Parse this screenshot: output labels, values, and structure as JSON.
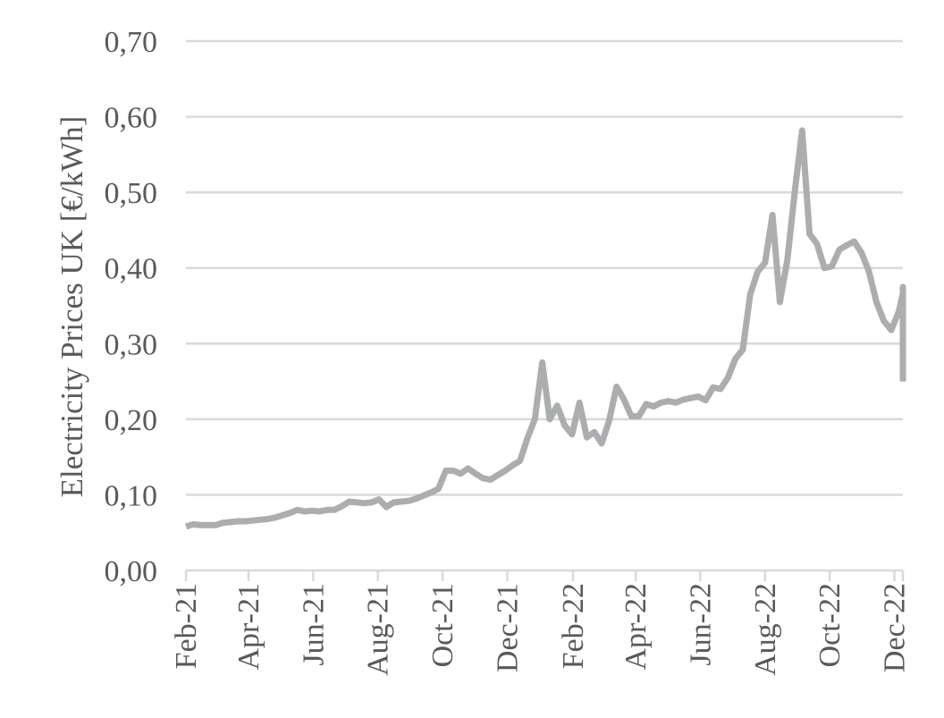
{
  "chart_data": {
    "type": "line",
    "title": "",
    "xlabel": "",
    "ylabel": "Electricity Prices UK [€/kWh]",
    "ylim": [
      0,
      0.7
    ],
    "grid": true,
    "legend": "none",
    "y_ticks": [
      {
        "value": 0.0,
        "label": "0,00"
      },
      {
        "value": 0.1,
        "label": "0,10"
      },
      {
        "value": 0.2,
        "label": "0,20"
      },
      {
        "value": 0.3,
        "label": "0,30"
      },
      {
        "value": 0.4,
        "label": "0,40"
      },
      {
        "value": 0.5,
        "label": "0,50"
      },
      {
        "value": 0.6,
        "label": "0,60"
      },
      {
        "value": 0.7,
        "label": "0,70"
      }
    ],
    "x_ticks": [
      {
        "date": "2021-02-01",
        "label": "Feb-21"
      },
      {
        "date": "2021-04-01",
        "label": "Apr-21"
      },
      {
        "date": "2021-06-01",
        "label": "Jun-21"
      },
      {
        "date": "2021-08-01",
        "label": "Aug-21"
      },
      {
        "date": "2021-10-01",
        "label": "Oct-21"
      },
      {
        "date": "2021-12-01",
        "label": "Dec-21"
      },
      {
        "date": "2022-02-01",
        "label": "Feb-22"
      },
      {
        "date": "2022-04-01",
        "label": "Apr-22"
      },
      {
        "date": "2022-06-01",
        "label": "Jun-22"
      },
      {
        "date": "2022-08-01",
        "label": "Aug-22"
      },
      {
        "date": "2022-10-01",
        "label": "Oct-22"
      },
      {
        "date": "2022-12-01",
        "label": "Dec-22"
      }
    ],
    "x_range": [
      "2021-02-01",
      "2022-12-28"
    ],
    "colors": {
      "line": "#abadaf",
      "grid": "#d9d9d9",
      "axis": "#d9d9d9",
      "text": "#595959"
    },
    "series": [
      {
        "points": [
          [
            "2021-02-01",
            0.058
          ],
          [
            "2021-02-08",
            0.061
          ],
          [
            "2021-02-15",
            0.06
          ],
          [
            "2021-02-22",
            0.06
          ],
          [
            "2021-03-01",
            0.06
          ],
          [
            "2021-03-08",
            0.063
          ],
          [
            "2021-03-15",
            0.064
          ],
          [
            "2021-03-22",
            0.065
          ],
          [
            "2021-03-29",
            0.065
          ],
          [
            "2021-04-05",
            0.066
          ],
          [
            "2021-04-12",
            0.067
          ],
          [
            "2021-04-19",
            0.068
          ],
          [
            "2021-04-26",
            0.07
          ],
          [
            "2021-05-03",
            0.073
          ],
          [
            "2021-05-10",
            0.076
          ],
          [
            "2021-05-17",
            0.08
          ],
          [
            "2021-05-24",
            0.078
          ],
          [
            "2021-05-31",
            0.079
          ],
          [
            "2021-06-07",
            0.078
          ],
          [
            "2021-06-14",
            0.08
          ],
          [
            "2021-06-21",
            0.08
          ],
          [
            "2021-06-28",
            0.085
          ],
          [
            "2021-07-05",
            0.091
          ],
          [
            "2021-07-12",
            0.09
          ],
          [
            "2021-07-19",
            0.089
          ],
          [
            "2021-07-26",
            0.09
          ],
          [
            "2021-08-02",
            0.094
          ],
          [
            "2021-08-09",
            0.084
          ],
          [
            "2021-08-16",
            0.09
          ],
          [
            "2021-08-23",
            0.091
          ],
          [
            "2021-08-30",
            0.092
          ],
          [
            "2021-09-06",
            0.095
          ],
          [
            "2021-09-13",
            0.099
          ],
          [
            "2021-09-20",
            0.103
          ],
          [
            "2021-09-27",
            0.108
          ],
          [
            "2021-10-04",
            0.132
          ],
          [
            "2021-10-11",
            0.132
          ],
          [
            "2021-10-18",
            0.128
          ],
          [
            "2021-10-25",
            0.135
          ],
          [
            "2021-11-01",
            0.128
          ],
          [
            "2021-11-08",
            0.122
          ],
          [
            "2021-11-15",
            0.12
          ],
          [
            "2021-11-22",
            0.126
          ],
          [
            "2021-11-29",
            0.132
          ],
          [
            "2021-12-06",
            0.139
          ],
          [
            "2021-12-13",
            0.145
          ],
          [
            "2021-12-20",
            0.175
          ],
          [
            "2021-12-27",
            0.2
          ],
          [
            "2022-01-03",
            0.275
          ],
          [
            "2022-01-10",
            0.2
          ],
          [
            "2022-01-17",
            0.218
          ],
          [
            "2022-01-24",
            0.192
          ],
          [
            "2022-01-31",
            0.18
          ],
          [
            "2022-02-07",
            0.222
          ],
          [
            "2022-02-14",
            0.176
          ],
          [
            "2022-02-21",
            0.183
          ],
          [
            "2022-02-28",
            0.168
          ],
          [
            "2022-03-07",
            0.198
          ],
          [
            "2022-03-14",
            0.243
          ],
          [
            "2022-03-21",
            0.226
          ],
          [
            "2022-03-28",
            0.204
          ],
          [
            "2022-04-04",
            0.204
          ],
          [
            "2022-04-11",
            0.22
          ],
          [
            "2022-04-18",
            0.217
          ],
          [
            "2022-04-25",
            0.222
          ],
          [
            "2022-05-02",
            0.224
          ],
          [
            "2022-05-09",
            0.222
          ],
          [
            "2022-05-16",
            0.226
          ],
          [
            "2022-05-23",
            0.228
          ],
          [
            "2022-05-30",
            0.23
          ],
          [
            "2022-06-06",
            0.225
          ],
          [
            "2022-06-13",
            0.242
          ],
          [
            "2022-06-20",
            0.24
          ],
          [
            "2022-06-27",
            0.255
          ],
          [
            "2022-07-04",
            0.28
          ],
          [
            "2022-07-11",
            0.292
          ],
          [
            "2022-07-18",
            0.365
          ],
          [
            "2022-07-25",
            0.395
          ],
          [
            "2022-08-01",
            0.407
          ],
          [
            "2022-08-08",
            0.47
          ],
          [
            "2022-08-15",
            0.355
          ],
          [
            "2022-08-22",
            0.41
          ],
          [
            "2022-08-29",
            0.5
          ],
          [
            "2022-09-05",
            0.582
          ],
          [
            "2022-09-12",
            0.445
          ],
          [
            "2022-09-19",
            0.432
          ],
          [
            "2022-09-26",
            0.4
          ],
          [
            "2022-10-03",
            0.402
          ],
          [
            "2022-10-10",
            0.424
          ],
          [
            "2022-10-17",
            0.43
          ],
          [
            "2022-10-24",
            0.435
          ],
          [
            "2022-10-31",
            0.42
          ],
          [
            "2022-11-07",
            0.395
          ],
          [
            "2022-11-14",
            0.355
          ],
          [
            "2022-11-21",
            0.33
          ],
          [
            "2022-11-28",
            0.318
          ],
          [
            "2022-12-05",
            0.342
          ],
          [
            "2022-12-12",
            0.366
          ],
          [
            "2022-12-19",
            0.375
          ],
          [
            "2022-12-26",
            0.338
          ],
          [
            "2023-01-02",
            0.28
          ],
          [
            "2023-01-07",
            0.25
          ]
        ]
      }
    ]
  }
}
